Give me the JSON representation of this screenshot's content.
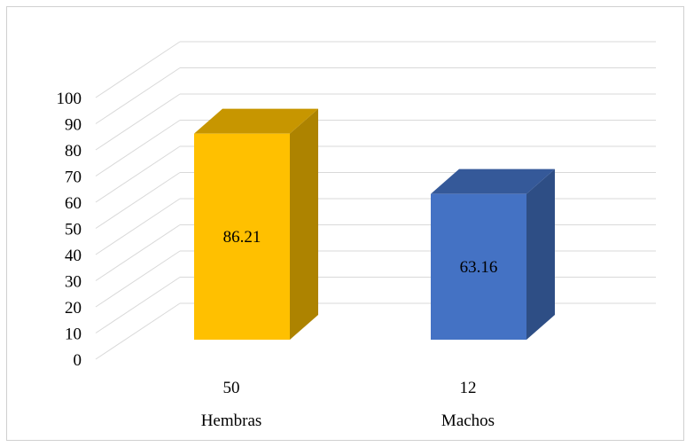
{
  "chart_data": {
    "type": "bar",
    "style": "3d-column",
    "categories": [
      "Hembras",
      "Machos"
    ],
    "category_counts": [
      "50",
      "12"
    ],
    "values": [
      86.21,
      63.16
    ],
    "data_labels": [
      "86.21",
      "63.16"
    ],
    "colors": [
      "#FFC000",
      "#4472C4"
    ],
    "ylim": [
      0,
      100
    ],
    "yticks": [
      0,
      10,
      20,
      30,
      40,
      50,
      60,
      70,
      80,
      90,
      100
    ],
    "grid": true,
    "legend": "none",
    "title": "",
    "xlabel": "",
    "ylabel": ""
  }
}
